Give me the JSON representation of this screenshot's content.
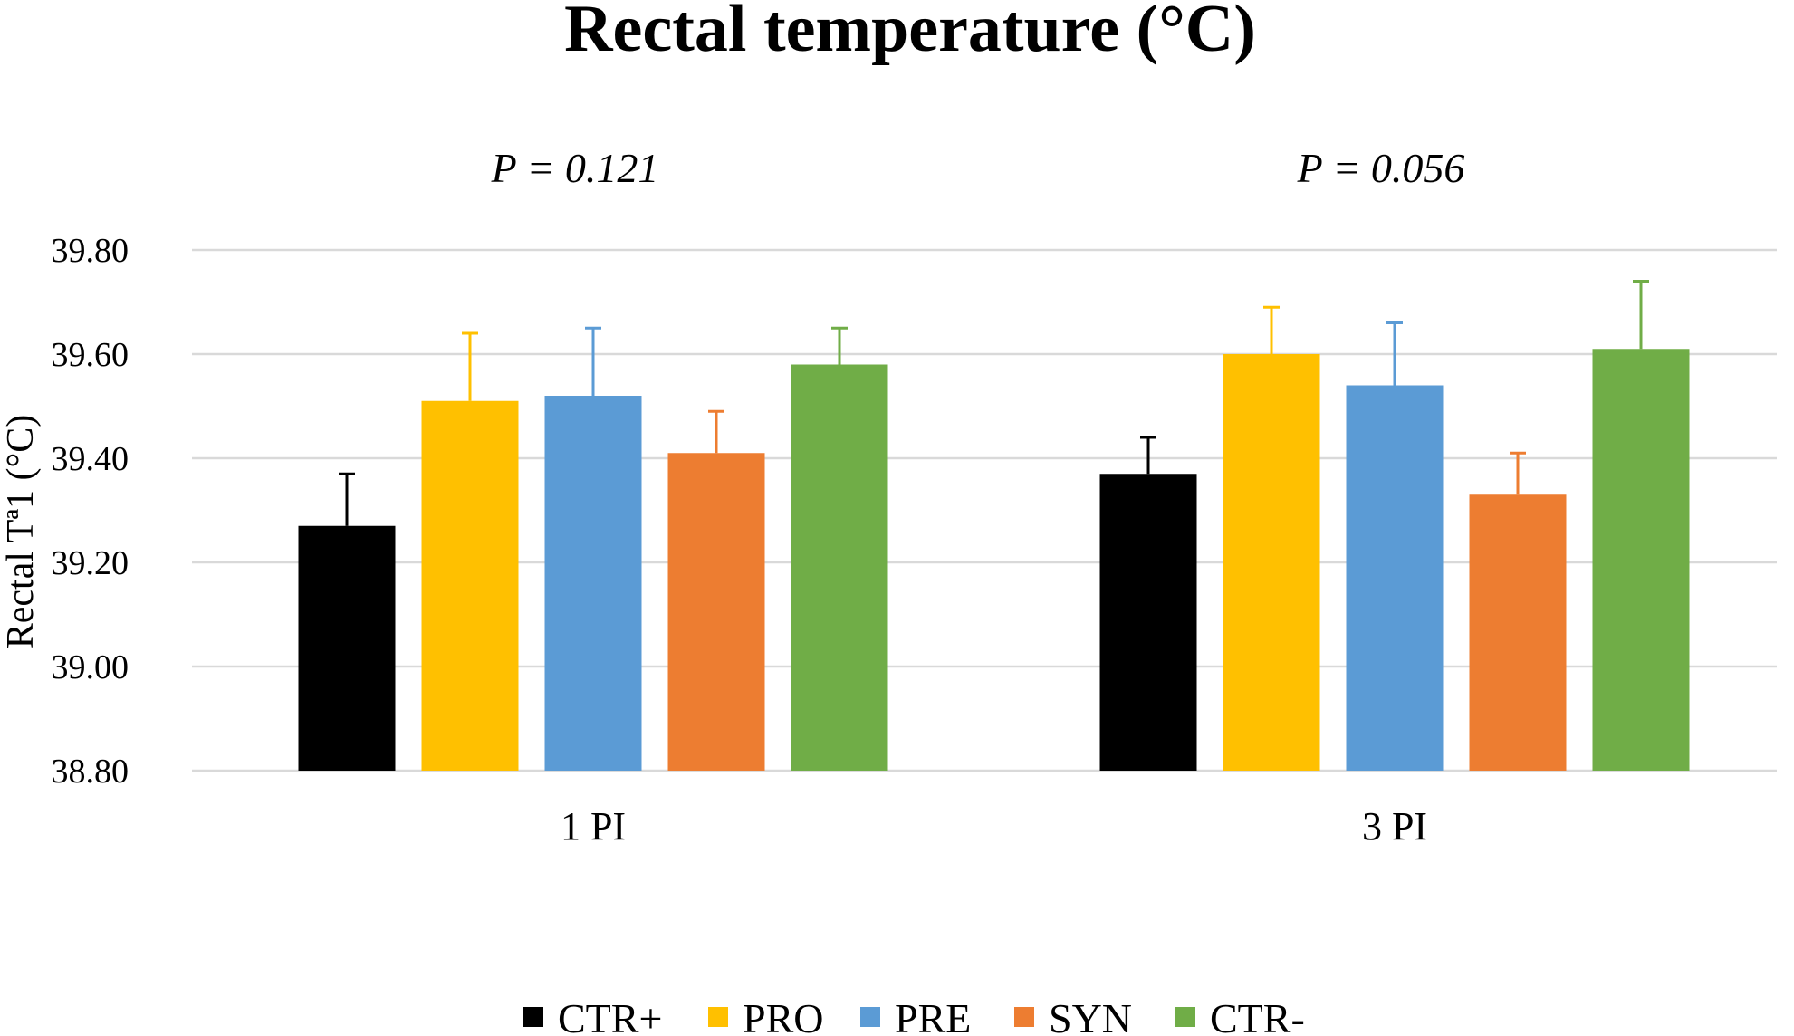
{
  "chart_data": {
    "type": "bar",
    "title": "Rectal temperature (°C)",
    "xlabel": "",
    "ylabel": "Rectal Tª1 (°C)",
    "ylim": [
      38.8,
      39.8
    ],
    "yticks": [
      38.8,
      39.0,
      39.2,
      39.4,
      39.6,
      39.8
    ],
    "ytick_labels": [
      "38.80",
      "39.00",
      "39.20",
      "39.40",
      "39.60",
      "39.80"
    ],
    "grid": true,
    "legend_position": "bottom-center",
    "categories": [
      "1 PI",
      "3 PI"
    ],
    "annotations": [
      "P = 0.121",
      "P = 0.056"
    ],
    "series": [
      {
        "name": "CTR+",
        "color": "#000000",
        "values": [
          39.27,
          39.37
        ],
        "errors": [
          0.1,
          0.07
        ]
      },
      {
        "name": "PRO",
        "color": "#ffc000",
        "values": [
          39.51,
          39.6
        ],
        "errors": [
          0.13,
          0.09
        ]
      },
      {
        "name": "PRE",
        "color": "#5b9bd5",
        "values": [
          39.52,
          39.54
        ],
        "errors": [
          0.13,
          0.12
        ]
      },
      {
        "name": "SYN",
        "color": "#ed7d31",
        "values": [
          39.41,
          39.33
        ],
        "errors": [
          0.08,
          0.08
        ]
      },
      {
        "name": "CTR-",
        "color": "#70ad47",
        "values": [
          39.58,
          39.61
        ],
        "errors": [
          0.07,
          0.13
        ]
      }
    ]
  }
}
